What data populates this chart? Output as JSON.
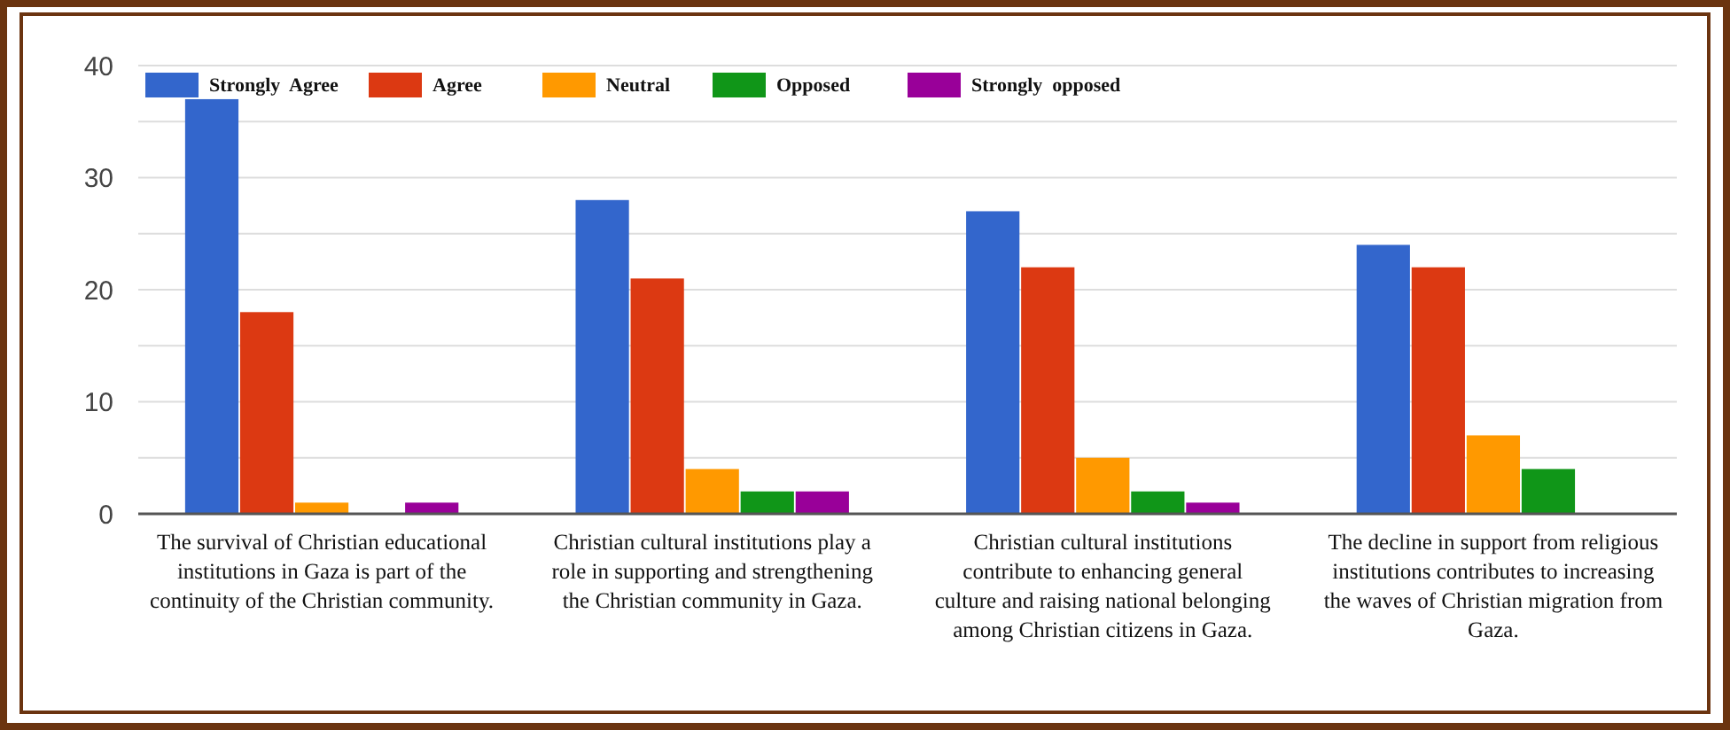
{
  "chart_data": {
    "type": "bar",
    "categories": [
      "The survival of Christian educational institutions in Gaza is part of the continuity of the Christian community.",
      "Christian cultural institutions play a role in supporting and strengthening the Christian community in Gaza.",
      "Christian cultural institutions contribute to enhancing general culture and raising national belonging among Christian citizens in Gaza.",
      "The decline in support from religious institutions contributes to increasing the waves of Christian migration from Gaza."
    ],
    "series": [
      {
        "name": "Strongly  Agree",
        "color": "#3366cc",
        "values": [
          37,
          28,
          27,
          24
        ]
      },
      {
        "name": "Agree",
        "color": "#dc3912",
        "values": [
          18,
          21,
          22,
          22
        ]
      },
      {
        "name": "Neutral",
        "color": "#ff9900",
        "values": [
          1,
          4,
          5,
          7
        ]
      },
      {
        "name": "Opposed",
        "color": "#109618",
        "values": [
          0,
          2,
          2,
          4
        ]
      },
      {
        "name": "Strongly  opposed",
        "color": "#990099",
        "values": [
          1,
          2,
          1,
          0
        ]
      }
    ],
    "ylim": [
      0,
      40
    ],
    "yticks": [
      0,
      {
        "value": 5,
        "label": null
      },
      10,
      {
        "value": 15,
        "label": null
      },
      20,
      {
        "value": 25,
        "label": null
      },
      30,
      {
        "value": 35,
        "label": null
      },
      40
    ],
    "grid": "y",
    "legend": "top"
  }
}
